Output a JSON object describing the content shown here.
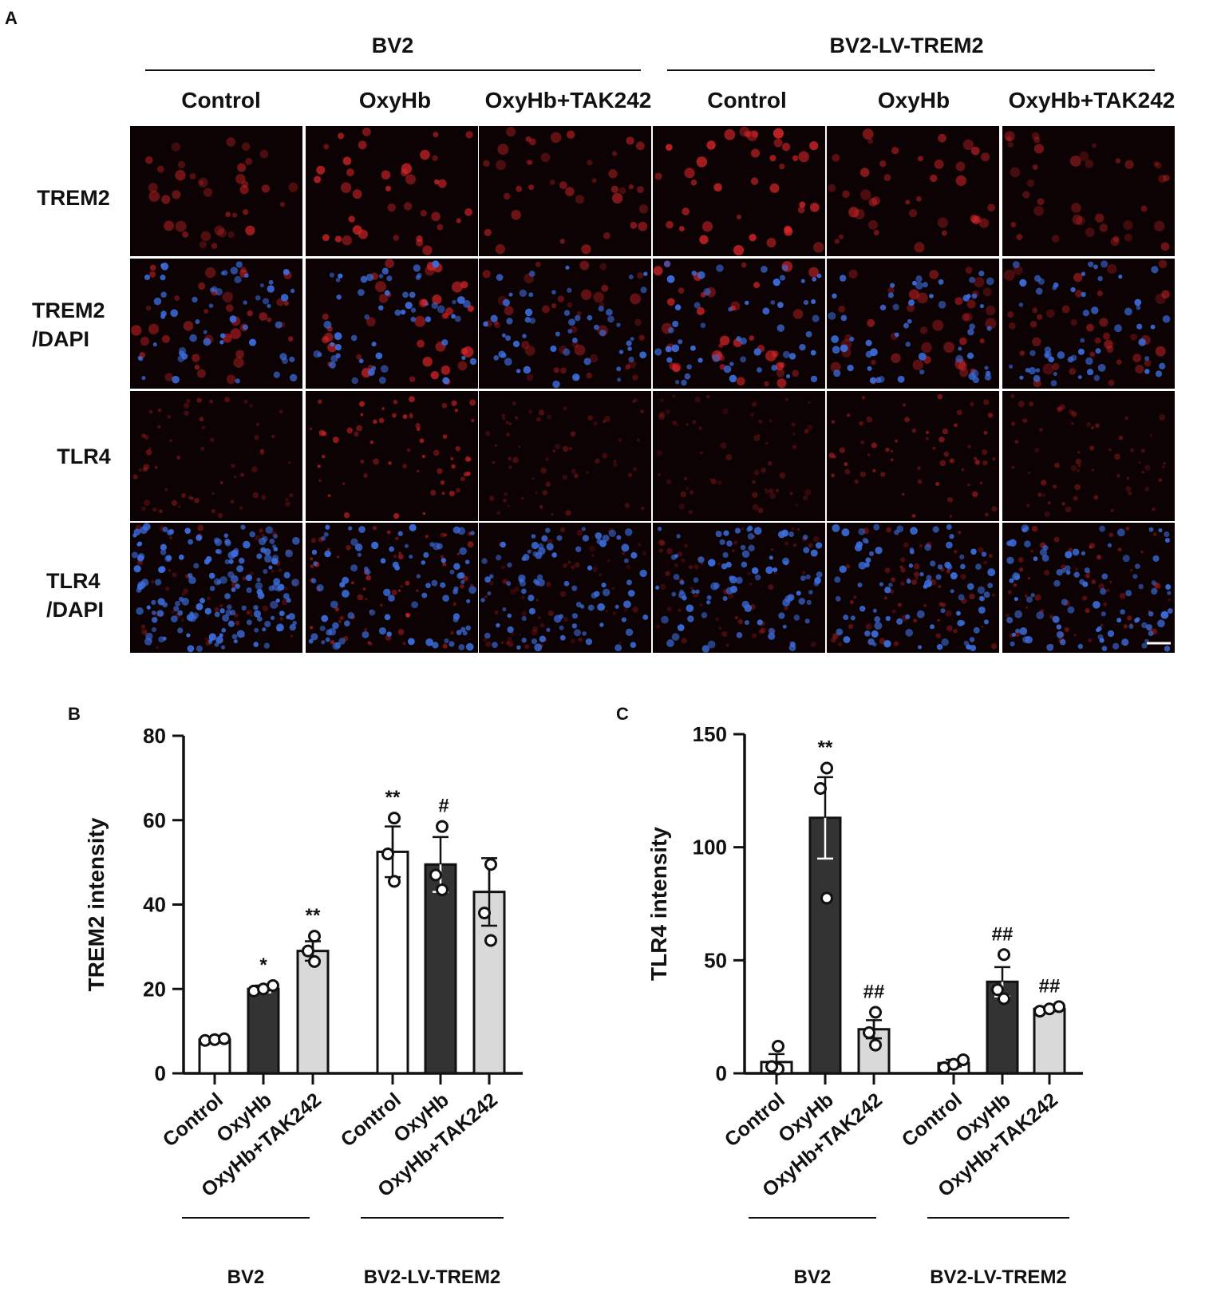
{
  "panel_a": {
    "letter": "A",
    "groups": [
      "BV2",
      "BV2-LV-TREM2"
    ],
    "conditions": [
      "Control",
      "OxyHb",
      "OxyHb+TAK242",
      "Control",
      "OxyHb",
      "OxyHb+TAK242"
    ],
    "rows": [
      {
        "label": [
          "TREM2"
        ],
        "channel": "trem2"
      },
      {
        "label": [
          "TREM2",
          "/DAPI"
        ],
        "channel": "trem2dapi"
      },
      {
        "label": [
          "TLR4"
        ],
        "channel": "tlr4"
      },
      {
        "label": [
          "TLR4",
          "/DAPI"
        ],
        "channel": "tlr4dapi"
      }
    ],
    "colors": {
      "cell_red": "#d8262a",
      "nucleus_blue": "#3c6ee0",
      "background": "#0c0203"
    }
  },
  "chart_data": [
    {
      "type": "bar",
      "letter": "B",
      "ylabel": "TREM2 intensity",
      "ylim": [
        0,
        80
      ],
      "yticks": [
        0,
        20,
        40,
        60,
        80
      ],
      "categories": [
        "Control",
        "OxyHb",
        "OxyHb+TAK242",
        "Control",
        "OxyHb",
        "OxyHb+TAK242"
      ],
      "groups": [
        "BV2",
        "BV2-LV-TREM2"
      ],
      "values": [
        8,
        20,
        29,
        52.5,
        49.5,
        43
      ],
      "errors": [
        0.4,
        0.8,
        2.3,
        6,
        6.5,
        8
      ],
      "points": [
        [
          7.8,
          8.0,
          8.2
        ],
        [
          19.5,
          20.0,
          20.8
        ],
        [
          26.5,
          29.0,
          32.5
        ],
        [
          45.5,
          52.0,
          60.5
        ],
        [
          43.5,
          47.0,
          58.5
        ],
        [
          31.5,
          38.0,
          49.5
        ]
      ],
      "fills": [
        "#ffffff",
        "#333333",
        "#d9d9d9",
        "#ffffff",
        "#333333",
        "#d9d9d9"
      ],
      "significance": [
        "",
        "*",
        "**",
        "**",
        "#",
        ""
      ]
    },
    {
      "type": "bar",
      "letter": "C",
      "ylabel": "TLR4 intensity",
      "ylim": [
        0,
        150
      ],
      "yticks": [
        0,
        50,
        100,
        150
      ],
      "categories": [
        "Control",
        "OxyHb",
        "OxyHb+TAK242",
        "Control",
        "OxyHb",
        "OxyHb+TAK242"
      ],
      "groups": [
        "BV2",
        "BV2-LV-TREM2"
      ],
      "values": [
        5,
        113,
        19.5,
        4.5,
        40.5,
        28.5
      ],
      "errors": [
        3.5,
        18,
        4,
        1.5,
        6.5,
        1
      ],
      "points": [
        [
          2.0,
          3.0,
          12.0
        ],
        [
          77.5,
          126.0,
          135.0
        ],
        [
          12.5,
          18.0,
          27.0
        ],
        [
          2.5,
          4.0,
          6.0
        ],
        [
          33.0,
          37.0,
          52.5
        ],
        [
          27.5,
          28.5,
          29.5
        ]
      ],
      "fills": [
        "#ffffff",
        "#333333",
        "#d9d9d9",
        "#ffffff",
        "#333333",
        "#d9d9d9"
      ],
      "significance": [
        "",
        "**",
        "##",
        "",
        "##",
        "##"
      ]
    }
  ]
}
